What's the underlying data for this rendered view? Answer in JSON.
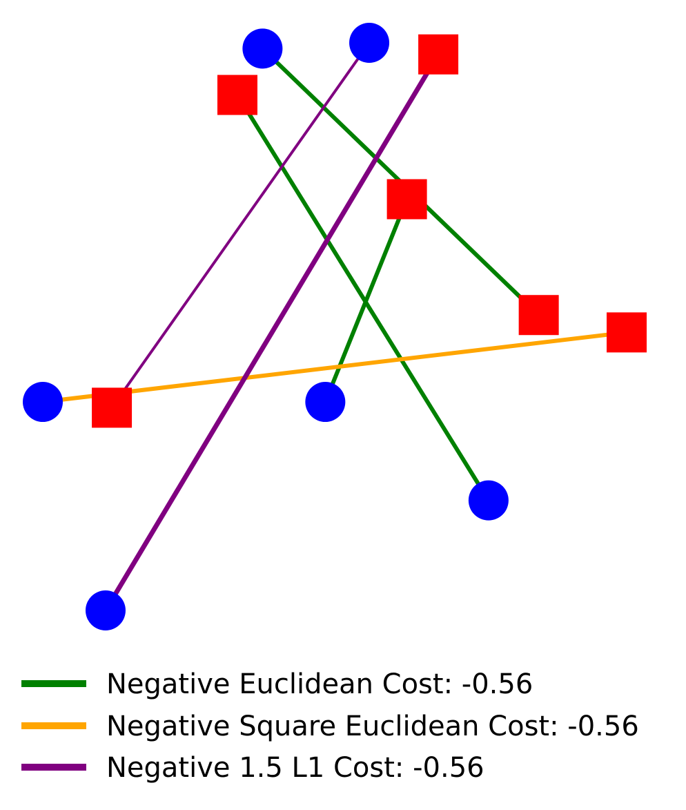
{
  "chart_data": {
    "type": "scatter",
    "title": "",
    "xlabel": "",
    "ylabel": "",
    "axes_visible": false,
    "grid": false,
    "xlim": [
      -0.05,
      1.05
    ],
    "ylim": [
      -0.05,
      1.05
    ],
    "legend_position": "bottom",
    "sources": {
      "name": "",
      "marker": "circle",
      "color": "#0000ff",
      "points": [
        {
          "x": 0.35,
          "y": 1.0
        },
        {
          "x": 0.52,
          "y": 1.01
        },
        {
          "x": 0.0,
          "y": 0.39
        },
        {
          "x": 0.45,
          "y": 0.39
        },
        {
          "x": 0.71,
          "y": 0.22
        },
        {
          "x": 0.1,
          "y": 0.03
        }
      ]
    },
    "targets": {
      "name": "",
      "marker": "square",
      "color": "#ff0000",
      "points": [
        {
          "x": 0.31,
          "y": 0.92
        },
        {
          "x": 0.63,
          "y": 0.99
        },
        {
          "x": 0.58,
          "y": 0.74
        },
        {
          "x": 0.79,
          "y": 0.54
        },
        {
          "x": 0.93,
          "y": 0.51
        },
        {
          "x": 0.11,
          "y": 0.38
        }
      ]
    },
    "series": [
      {
        "name": "Negative Euclidean Cost: -0.56",
        "color": "#008000",
        "line_width": "medium",
        "matches": [
          {
            "from": [
              0.35,
              1.0
            ],
            "to": [
              0.79,
              0.54
            ]
          },
          {
            "from": [
              0.45,
              0.39
            ],
            "to": [
              0.58,
              0.74
            ]
          },
          {
            "from": [
              0.71,
              0.22
            ],
            "to": [
              0.31,
              0.92
            ]
          }
        ]
      },
      {
        "name": "Negative Square Euclidean Cost: -0.56",
        "color": "#ffa500",
        "line_width": "medium",
        "matches": [
          {
            "from": [
              0.0,
              0.39
            ],
            "to": [
              0.93,
              0.51
            ]
          }
        ]
      },
      {
        "name": "Negative 1.5 L1 Cost: -0.56",
        "color": "#800080",
        "line_width": "mixed",
        "matches": [
          {
            "from": [
              0.52,
              1.01
            ],
            "to": [
              0.11,
              0.38
            ],
            "weight": "thin"
          },
          {
            "from": [
              0.1,
              0.03
            ],
            "to": [
              0.63,
              0.99
            ],
            "weight": "thick"
          }
        ]
      }
    ]
  }
}
